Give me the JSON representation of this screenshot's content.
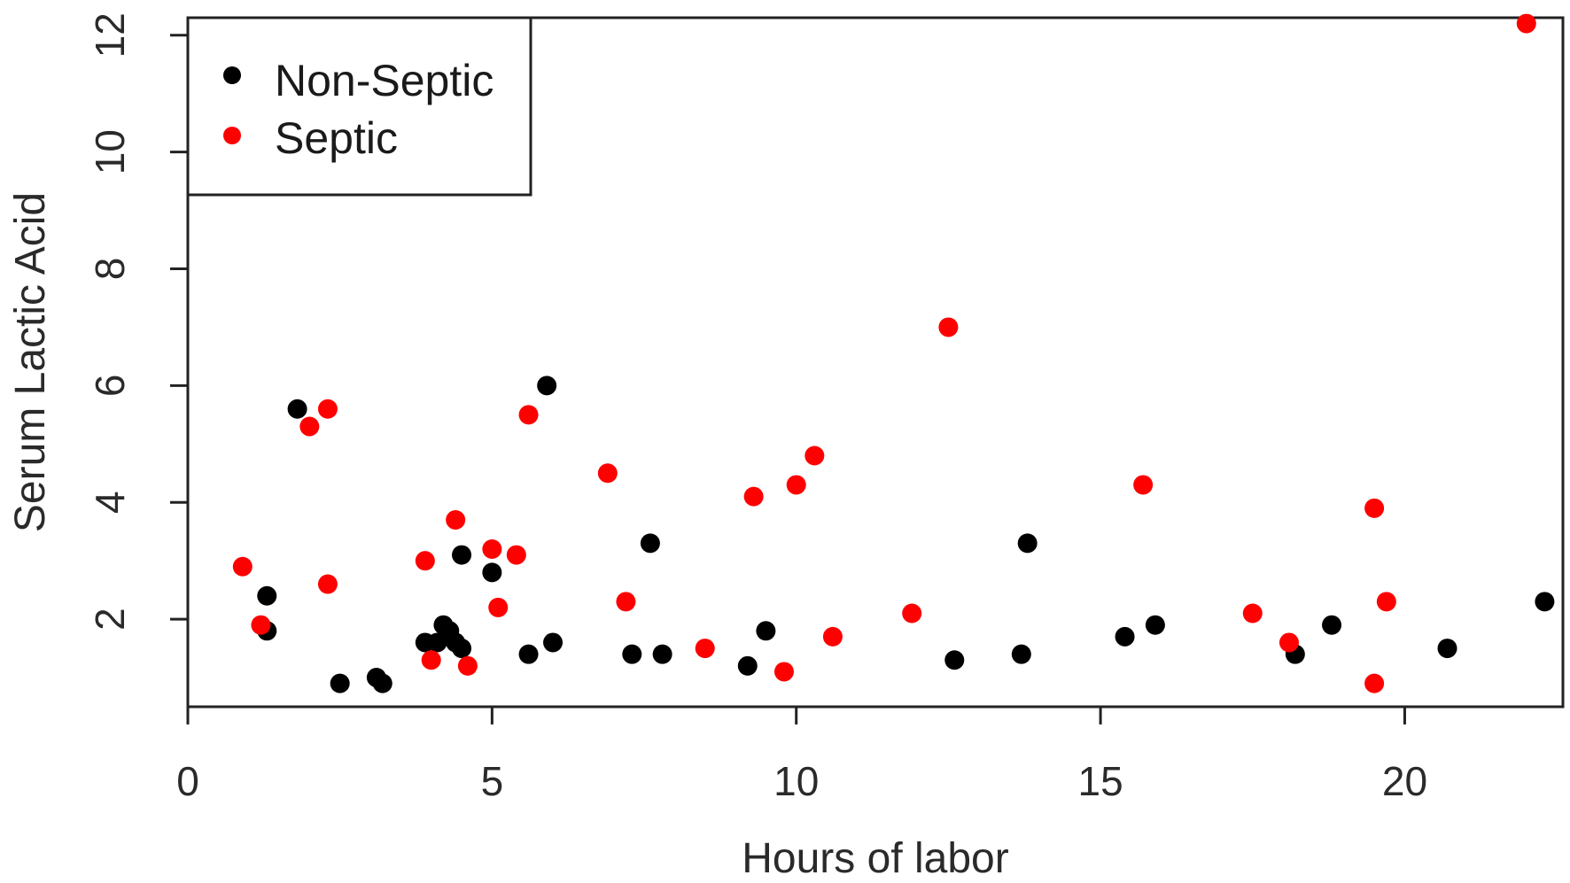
{
  "chart_data": {
    "type": "scatter",
    "title": "",
    "xlabel": "Hours of labor",
    "ylabel": "Serum Lactic Acid",
    "xlim": [
      0,
      22.6
    ],
    "ylim": [
      0.5,
      12.3
    ],
    "x_ticks": [
      0,
      5,
      10,
      15,
      20
    ],
    "y_ticks": [
      2,
      4,
      6,
      8,
      10,
      12
    ],
    "grid": false,
    "legend_position": "top-left",
    "series": [
      {
        "name": "Non-Septic",
        "color": "#000000",
        "points": [
          [
            1.3,
            1.8
          ],
          [
            1.3,
            2.4
          ],
          [
            1.8,
            5.6
          ],
          [
            2.5,
            0.9
          ],
          [
            3.1,
            1.0
          ],
          [
            3.2,
            0.9
          ],
          [
            3.9,
            1.6
          ],
          [
            4.1,
            1.6
          ],
          [
            4.2,
            1.9
          ],
          [
            4.3,
            1.8
          ],
          [
            4.4,
            1.6
          ],
          [
            4.5,
            1.5
          ],
          [
            4.5,
            3.1
          ],
          [
            5.0,
            2.8
          ],
          [
            5.6,
            1.4
          ],
          [
            5.9,
            6.0
          ],
          [
            6.0,
            1.6
          ],
          [
            7.3,
            1.4
          ],
          [
            7.6,
            3.3
          ],
          [
            7.8,
            1.4
          ],
          [
            9.2,
            1.2
          ],
          [
            9.5,
            1.8
          ],
          [
            12.6,
            1.3
          ],
          [
            13.7,
            1.4
          ],
          [
            13.8,
            3.3
          ],
          [
            15.4,
            1.7
          ],
          [
            15.9,
            1.9
          ],
          [
            18.2,
            1.4
          ],
          [
            18.8,
            1.9
          ],
          [
            20.7,
            1.5
          ],
          [
            22.3,
            2.3
          ]
        ]
      },
      {
        "name": "Septic",
        "color": "#ff0000",
        "points": [
          [
            0.9,
            2.9
          ],
          [
            1.2,
            1.9
          ],
          [
            2.0,
            5.3
          ],
          [
            2.3,
            5.6
          ],
          [
            2.3,
            2.6
          ],
          [
            3.9,
            3.0
          ],
          [
            4.0,
            1.3
          ],
          [
            4.4,
            3.7
          ],
          [
            4.6,
            1.2
          ],
          [
            5.0,
            3.2
          ],
          [
            5.1,
            2.2
          ],
          [
            5.4,
            3.1
          ],
          [
            5.6,
            5.5
          ],
          [
            6.9,
            4.5
          ],
          [
            7.2,
            2.3
          ],
          [
            8.5,
            1.5
          ],
          [
            9.3,
            4.1
          ],
          [
            9.8,
            1.1
          ],
          [
            10.0,
            4.3
          ],
          [
            10.3,
            4.8
          ],
          [
            10.6,
            1.7
          ],
          [
            11.9,
            2.1
          ],
          [
            12.5,
            7.0
          ],
          [
            15.7,
            4.3
          ],
          [
            17.5,
            2.1
          ],
          [
            18.1,
            1.6
          ],
          [
            19.5,
            3.9
          ],
          [
            19.5,
            0.9
          ],
          [
            19.7,
            2.3
          ],
          [
            22.0,
            12.2
          ]
        ]
      }
    ]
  }
}
